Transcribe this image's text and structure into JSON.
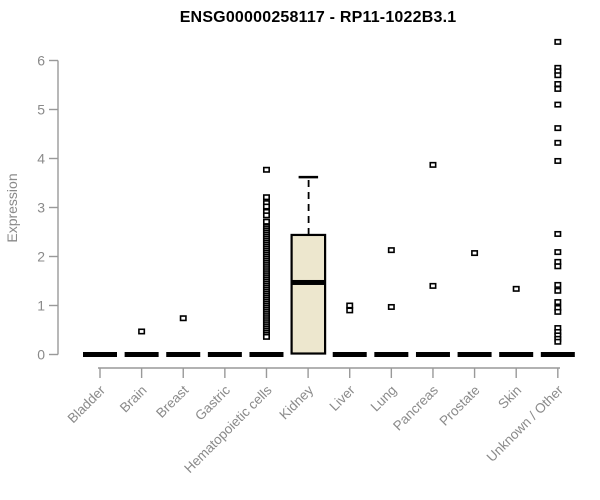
{
  "chart_data": {
    "type": "boxplot",
    "title": "ENSG00000258117 - RP11-1022B3.1",
    "ylabel": "Expression",
    "xlabel": "",
    "ylim": [
      0,
      6.5
    ],
    "y_ticks": [
      0,
      1,
      2,
      3,
      4,
      5,
      6
    ],
    "grid": false,
    "legend": null,
    "categories": [
      "Bladder",
      "Brain",
      "Breast",
      "Gastric",
      "Hematopoietic cells",
      "Kidney",
      "Liver",
      "Lung",
      "Pancreas",
      "Prostate",
      "Skin",
      "Unknown / Other"
    ],
    "series": [
      {
        "category": "Bladder",
        "q1": 0,
        "median": 0,
        "q3": 0,
        "whisker_low": 0,
        "whisker_high": 0,
        "outliers": []
      },
      {
        "category": "Brain",
        "q1": 0,
        "median": 0,
        "q3": 0,
        "whisker_low": 0,
        "whisker_high": 0,
        "outliers": [
          0.47
        ]
      },
      {
        "category": "Breast",
        "q1": 0,
        "median": 0,
        "q3": 0,
        "whisker_low": 0,
        "whisker_high": 0,
        "outliers": [
          0.74
        ]
      },
      {
        "category": "Gastric",
        "q1": 0,
        "median": 0,
        "q3": 0,
        "whisker_low": 0,
        "whisker_high": 0,
        "outliers": []
      },
      {
        "category": "Hematopoietic cells",
        "q1": 0,
        "median": 0,
        "q3": 0,
        "whisker_low": 0,
        "whisker_high": 0,
        "outliers": [
          3.77,
          3.21,
          3.09,
          3.02,
          2.91,
          2.84,
          2.71,
          2.6,
          2.56,
          2.52,
          2.48,
          2.44,
          2.4,
          2.36,
          2.32,
          2.28,
          2.24,
          2.2,
          2.16,
          2.12,
          2.08,
          2.04,
          2.0,
          1.96,
          1.92,
          1.88,
          1.84,
          1.8,
          1.76,
          1.72,
          1.68,
          1.64,
          1.6,
          1.56,
          1.52,
          1.48,
          1.44,
          1.4,
          1.36,
          1.32,
          1.28,
          1.24,
          1.2,
          1.16,
          1.12,
          1.08,
          1.04,
          1.0,
          0.96,
          0.92,
          0.88,
          0.84,
          0.8,
          0.76,
          0.72,
          0.68,
          0.64,
          0.6,
          0.56,
          0.52,
          0.48,
          0.44,
          0.4,
          0.36
        ]
      },
      {
        "category": "Kidney",
        "q1": 0.02,
        "median": 1.47,
        "q3": 2.44,
        "whisker_low": 0.02,
        "whisker_high": 3.62,
        "outliers": []
      },
      {
        "category": "Liver",
        "q1": 0,
        "median": 0,
        "q3": 0,
        "whisker_low": 0,
        "whisker_high": 0,
        "outliers": [
          1.0,
          0.9
        ]
      },
      {
        "category": "Lung",
        "q1": 0,
        "median": 0,
        "q3": 0,
        "whisker_low": 0,
        "whisker_high": 0,
        "outliers": [
          2.13,
          0.97
        ]
      },
      {
        "category": "Pancreas",
        "q1": 0,
        "median": 0,
        "q3": 0,
        "whisker_low": 0,
        "whisker_high": 0,
        "outliers": [
          3.87,
          1.4
        ]
      },
      {
        "category": "Prostate",
        "q1": 0,
        "median": 0,
        "q3": 0,
        "whisker_low": 0,
        "whisker_high": 0,
        "outliers": [
          2.07
        ]
      },
      {
        "category": "Skin",
        "q1": 0,
        "median": 0,
        "q3": 0,
        "whisker_low": 0,
        "whisker_high": 0,
        "outliers": [
          1.34
        ]
      },
      {
        "category": "Unknown / Other",
        "q1": 0,
        "median": 0,
        "q3": 0,
        "whisker_low": 0,
        "whisker_high": 0,
        "outliers": [
          6.38,
          5.85,
          5.78,
          5.7,
          5.52,
          5.42,
          5.1,
          4.62,
          4.32,
          3.95,
          2.46,
          2.09,
          1.89,
          1.8,
          1.42,
          1.3,
          1.07,
          0.95,
          0.87,
          0.54,
          0.46,
          0.39,
          0.32,
          0.26
        ]
      }
    ],
    "style": {
      "background": "#ffffff",
      "box_fill": "#ede7ce",
      "box_stroke": "#000000",
      "median_color": "#000000",
      "whisker_color": "#000000",
      "zero_bar_color": "#000000",
      "outlier_fill": "#ffffff",
      "outlier_stroke": "#000000",
      "axis_color": "#999999",
      "tick_label_color": "#8a8a8a",
      "title_color": "#000000"
    }
  }
}
